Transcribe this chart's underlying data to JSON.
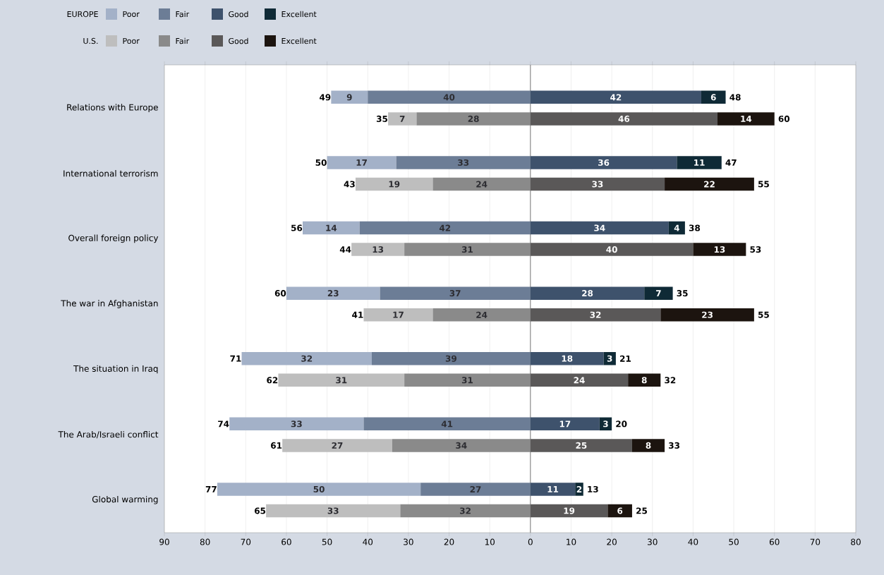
{
  "chart_data": {
    "type": "bar",
    "orientation": "horizontal",
    "categories": [
      "Relations with Europe",
      "International terrorism",
      "Overall foreign policy",
      "The war in Afghanistan",
      "The situation in Iraq",
      "The Arab/Israeli conflict",
      "Global warming"
    ],
    "series": [
      {
        "name": "Poor",
        "color": "#a3b1c8",
        "base": [
          -49,
          -50,
          -56,
          -60,
          -71,
          -74,
          -77
        ],
        "values": [
          9,
          17,
          14,
          23,
          32,
          33,
          50
        ]
      },
      {
        "name": "Fair",
        "color": "#6c7d96",
        "base": [
          -40,
          -33,
          -42,
          -37,
          -39,
          -41,
          -27
        ],
        "values": [
          40,
          33,
          42,
          37,
          39,
          41,
          27
        ]
      },
      {
        "name": "Good",
        "color": "#3e526c",
        "base": [
          0,
          0,
          0,
          0,
          0,
          0,
          0
        ],
        "values": [
          42,
          36,
          34,
          28,
          18,
          17,
          11
        ]
      },
      {
        "name": "Excellent",
        "color": "#0f2a36",
        "base": [
          42,
          36,
          34,
          28,
          18,
          17,
          11
        ],
        "values": [
          6,
          11,
          4,
          7,
          3,
          3,
          2
        ]
      },
      {
        "name": "Poor",
        "color": "#bebebe",
        "base": [
          -35,
          -43,
          -44,
          -41,
          -62,
          -61,
          -65
        ],
        "values": [
          7,
          19,
          13,
          17,
          31,
          27,
          33
        ]
      },
      {
        "name": "Fair",
        "color": "#8a8a8a",
        "base": [
          -28,
          -24,
          -31,
          -24,
          -31,
          -34,
          -32
        ],
        "values": [
          28,
          24,
          31,
          24,
          31,
          34,
          32
        ]
      },
      {
        "name": "Good",
        "color": "#5a5858",
        "base": [
          0,
          0,
          0,
          0,
          0,
          0,
          0
        ],
        "values": [
          46,
          33,
          40,
          32,
          24,
          25,
          19
        ]
      },
      {
        "name": "Excellent",
        "color": "#1c140f",
        "base": [
          46,
          33,
          40,
          32,
          24,
          25,
          19
        ],
        "values": [
          14,
          22,
          13,
          23,
          8,
          8,
          6
        ]
      }
    ],
    "xlim": [
      -90,
      80
    ],
    "xticks": [
      {
        "value": -90,
        "label": "90"
      },
      {
        "value": -80,
        "label": "80"
      },
      {
        "value": -70,
        "label": "70"
      },
      {
        "value": -60,
        "label": "60"
      },
      {
        "value": -50,
        "label": "50"
      },
      {
        "value": -40,
        "label": "40"
      },
      {
        "value": -30,
        "label": "30"
      },
      {
        "value": -20,
        "label": "20"
      },
      {
        "value": -10,
        "label": "10"
      },
      0,
      10,
      20,
      30,
      40,
      50,
      60,
      70,
      80
    ],
    "grid": "x",
    "data_labels": true,
    "legend": "top left",
    "annotations": [
      "EUROPE",
      "U.S.",
      "49",
      "48",
      "35",
      "60",
      "50",
      "47",
      "43",
      "55",
      "56",
      "38",
      "44",
      "53",
      "60",
      "35",
      "41",
      "55",
      "71",
      "21",
      "62",
      "32",
      "74",
      "20",
      "61",
      "33",
      "77",
      "13",
      "65",
      "25"
    ],
    "ref_lines": [
      {
        "axis": "x",
        "value": 0,
        "color": "#7a7a7a"
      }
    ]
  }
}
